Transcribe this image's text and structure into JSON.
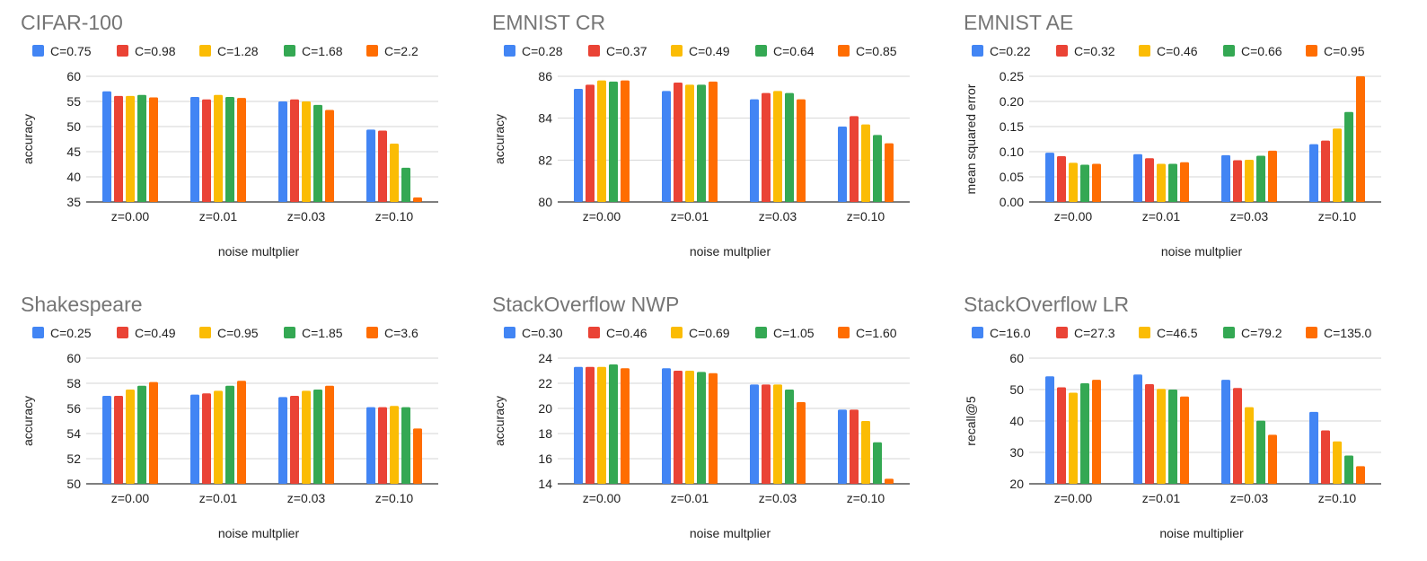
{
  "colors": [
    "#4285F4",
    "#EA4335",
    "#FBBC04",
    "#34A853",
    "#FF6D01"
  ],
  "chart_data": [
    {
      "type": "bar",
      "title": "CIFAR-100",
      "categories": [
        "z=0.00",
        "z=0.01",
        "z=0.03",
        "z=0.10"
      ],
      "xlabel": "noise multplier",
      "ylabel": "accuracy",
      "ylim": [
        35,
        60
      ],
      "yticks": [
        35,
        40,
        45,
        50,
        55,
        60
      ],
      "yticklabels": [
        "35",
        "40",
        "45",
        "50",
        "55",
        "60"
      ],
      "legend_position": "top",
      "grid": true,
      "series": [
        {
          "name": "C=0.75",
          "values": [
            57.0,
            55.9,
            55.0,
            49.4
          ]
        },
        {
          "name": "C=0.98",
          "values": [
            56.1,
            55.4,
            55.4,
            49.2
          ]
        },
        {
          "name": "C=1.28",
          "values": [
            56.1,
            56.3,
            55.0,
            46.6
          ]
        },
        {
          "name": "C=1.68",
          "values": [
            56.3,
            55.9,
            54.3,
            41.8
          ]
        },
        {
          "name": "C=2.2",
          "values": [
            55.8,
            55.7,
            53.3,
            35.9
          ]
        }
      ]
    },
    {
      "type": "bar",
      "title": "EMNIST CR",
      "categories": [
        "z=0.00",
        "z=0.01",
        "z=0.03",
        "z=0.10"
      ],
      "xlabel": "noise multplier",
      "ylabel": "accuracy",
      "ylim": [
        80,
        86
      ],
      "yticks": [
        80,
        82,
        84,
        86
      ],
      "yticklabels": [
        "80",
        "82",
        "84",
        "86"
      ],
      "legend_position": "top",
      "grid": true,
      "series": [
        {
          "name": "C=0.28",
          "values": [
            85.4,
            85.3,
            84.9,
            83.6
          ]
        },
        {
          "name": "C=0.37",
          "values": [
            85.6,
            85.7,
            85.2,
            84.1
          ]
        },
        {
          "name": "C=0.49",
          "values": [
            85.8,
            85.6,
            85.3,
            83.7
          ]
        },
        {
          "name": "C=0.64",
          "values": [
            85.75,
            85.6,
            85.2,
            83.2
          ]
        },
        {
          "name": "C=0.85",
          "values": [
            85.8,
            85.75,
            84.9,
            82.8
          ]
        }
      ]
    },
    {
      "type": "bar",
      "title": "EMNIST AE",
      "categories": [
        "z=0.00",
        "z=0.01",
        "z=0.03",
        "z=0.10"
      ],
      "xlabel": "noise multplier",
      "ylabel": "mean squared error",
      "ylim": [
        0,
        0.25
      ],
      "yticks": [
        0,
        0.05,
        0.1,
        0.15,
        0.2,
        0.25
      ],
      "yticklabels": [
        "0.00",
        "0.05",
        "0.10",
        "0.15",
        "0.20",
        "0.25"
      ],
      "legend_position": "top",
      "grid": true,
      "series": [
        {
          "name": "C=0.22",
          "values": [
            0.098,
            0.095,
            0.093,
            0.115
          ]
        },
        {
          "name": "C=0.32",
          "values": [
            0.091,
            0.087,
            0.083,
            0.122
          ]
        },
        {
          "name": "C=0.46",
          "values": [
            0.078,
            0.076,
            0.084,
            0.146
          ]
        },
        {
          "name": "C=0.66",
          "values": [
            0.074,
            0.076,
            0.092,
            0.179
          ]
        },
        {
          "name": "C=0.95",
          "values": [
            0.076,
            0.079,
            0.102,
            0.25
          ]
        }
      ]
    },
    {
      "type": "bar",
      "title": "Shakespeare",
      "categories": [
        "z=0.00",
        "z=0.01",
        "z=0.03",
        "z=0.10"
      ],
      "xlabel": "noise multplier",
      "ylabel": "accuracy",
      "ylim": [
        50,
        60
      ],
      "yticks": [
        50,
        52,
        54,
        56,
        58,
        60
      ],
      "yticklabels": [
        "50",
        "52",
        "54",
        "56",
        "58",
        "60"
      ],
      "legend_position": "top",
      "grid": true,
      "series": [
        {
          "name": "C=0.25",
          "values": [
            57.0,
            57.1,
            56.9,
            56.1
          ]
        },
        {
          "name": "C=0.49",
          "values": [
            57.0,
            57.2,
            57.0,
            56.1
          ]
        },
        {
          "name": "C=0.95",
          "values": [
            57.5,
            57.4,
            57.4,
            56.2
          ]
        },
        {
          "name": "C=1.85",
          "values": [
            57.8,
            57.8,
            57.5,
            56.1
          ]
        },
        {
          "name": "C=3.6",
          "values": [
            58.1,
            58.2,
            57.8,
            54.4
          ]
        }
      ]
    },
    {
      "type": "bar",
      "title": "StackOverflow NWP",
      "categories": [
        "z=0.00",
        "z=0.01",
        "z=0.03",
        "z=0.10"
      ],
      "xlabel": "noise multplier",
      "ylabel": "accuracy",
      "ylim": [
        14,
        24
      ],
      "yticks": [
        14,
        16,
        18,
        20,
        22,
        24
      ],
      "yticklabels": [
        "14",
        "16",
        "18",
        "20",
        "22",
        "24"
      ],
      "legend_position": "top",
      "grid": true,
      "series": [
        {
          "name": "C=0.30",
          "values": [
            23.3,
            23.2,
            21.9,
            19.9
          ]
        },
        {
          "name": "C=0.46",
          "values": [
            23.3,
            23.0,
            21.9,
            19.9
          ]
        },
        {
          "name": "C=0.69",
          "values": [
            23.3,
            23.0,
            21.9,
            19.0
          ]
        },
        {
          "name": "C=1.05",
          "values": [
            23.5,
            22.9,
            21.5,
            17.3
          ]
        },
        {
          "name": "C=1.60",
          "values": [
            23.2,
            22.8,
            20.5,
            14.4
          ]
        }
      ]
    },
    {
      "type": "bar",
      "title": "StackOverflow LR",
      "categories": [
        "z=0.00",
        "z=0.01",
        "z=0.03",
        "z=0.10"
      ],
      "xlabel": "noise multiplier",
      "ylabel": "recall@5",
      "ylim": [
        20,
        60
      ],
      "yticks": [
        20,
        30,
        40,
        50,
        60
      ],
      "yticklabels": [
        "20",
        "30",
        "40",
        "50",
        "60"
      ],
      "legend_position": "top",
      "grid": true,
      "series": [
        {
          "name": "C=16.0",
          "values": [
            54.2,
            54.8,
            53.1,
            42.9
          ]
        },
        {
          "name": "C=27.3",
          "values": [
            50.7,
            51.7,
            50.5,
            37.0
          ]
        },
        {
          "name": "C=46.5",
          "values": [
            49.0,
            50.2,
            44.4,
            33.5
          ]
        },
        {
          "name": "C=79.2",
          "values": [
            52.0,
            50.0,
            40.1,
            29.0
          ]
        },
        {
          "name": "C=135.0",
          "values": [
            53.1,
            47.8,
            35.6,
            25.6
          ]
        }
      ]
    }
  ]
}
